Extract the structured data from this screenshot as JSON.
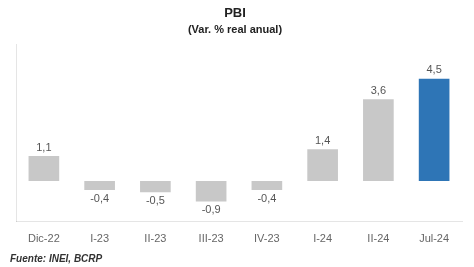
{
  "chart_data": {
    "type": "bar",
    "title": "PBI",
    "subtitle": "(Var. % real anual)",
    "annotations": [
      "Fuente: INEI, BCRP"
    ],
    "categories": [
      "Dic-22",
      "I-23",
      "II-23",
      "III-23",
      "IV-23",
      "I-24",
      "II-24",
      "Jul-24"
    ],
    "values": [
      1.1,
      -0.4,
      -0.5,
      -0.9,
      -0.4,
      1.4,
      3.6,
      4.5
    ],
    "value_labels": [
      "1,1",
      "-0,4",
      "-0,5",
      "-0,9",
      "-0,4",
      "1,4",
      "3,6",
      "4,5"
    ],
    "colors": [
      "#c8c8c8",
      "#c8c8c8",
      "#c8c8c8",
      "#c8c8c8",
      "#c8c8c8",
      "#c8c8c8",
      "#c8c8c8",
      "#2e75b6"
    ],
    "ylim": [
      -1.8,
      6.0
    ],
    "grid": false,
    "data_labels": true,
    "tick_labels": "x"
  }
}
